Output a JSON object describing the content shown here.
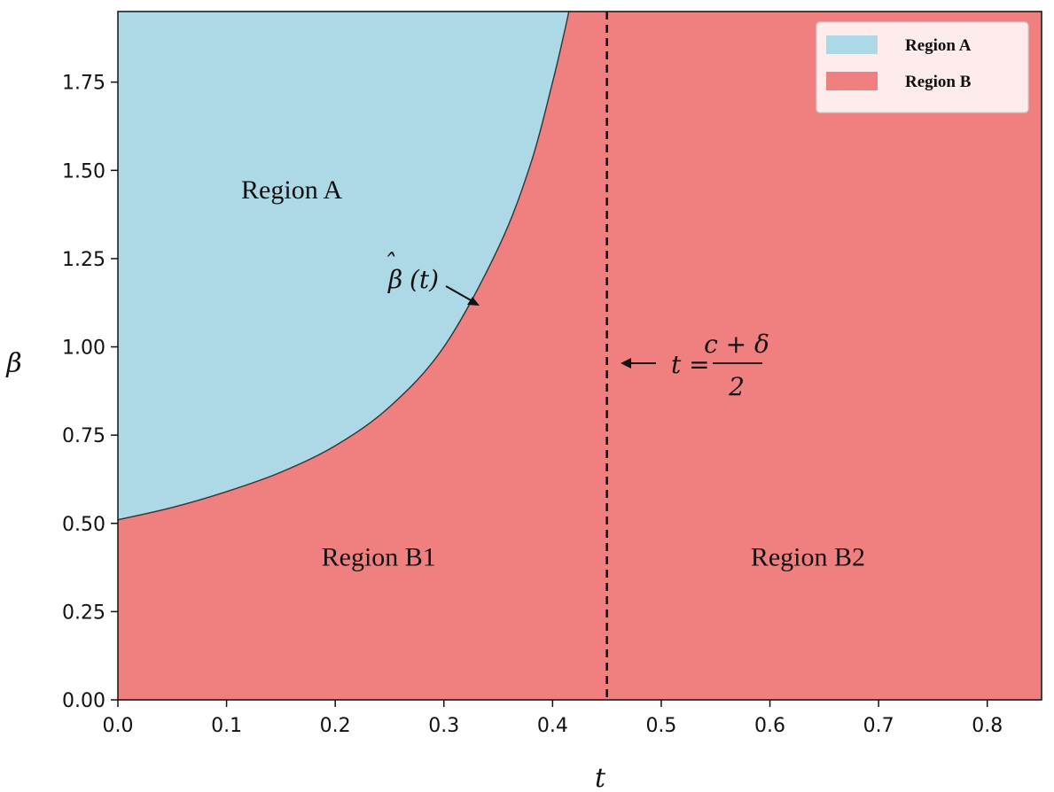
{
  "chart_data": {
    "type": "area",
    "xlabel": "t",
    "ylabel": "β",
    "xlim": [
      0.0,
      0.85
    ],
    "ylim": [
      0.0,
      1.95
    ],
    "x_ticks": [
      "0.0",
      "0.1",
      "0.2",
      "0.3",
      "0.4",
      "0.5",
      "0.6",
      "0.7",
      "0.8"
    ],
    "y_ticks": [
      "0.00",
      "0.25",
      "0.50",
      "0.75",
      "1.00",
      "1.25",
      "1.50",
      "1.75"
    ],
    "grid": false,
    "legend": {
      "placement": "top-right",
      "entries": [
        {
          "label": "Region A",
          "color": "#add8e6"
        },
        {
          "label": "Region B",
          "color": "#f08080"
        }
      ]
    },
    "boundary_curve": {
      "name": "β̂(t)",
      "label_main": "β",
      "label_hat": "ˆ",
      "label_arg": "(t)",
      "x": [
        0.0,
        0.05,
        0.1,
        0.15,
        0.2,
        0.25,
        0.3,
        0.35,
        0.38,
        0.4,
        0.41,
        0.415
      ],
      "y": [
        0.51,
        0.545,
        0.59,
        0.645,
        0.72,
        0.83,
        1.0,
        1.28,
        1.52,
        1.75,
        1.88,
        1.95
      ]
    },
    "vertical_line": {
      "x": 0.45,
      "style": "dashed",
      "label_lhs": "t =",
      "label_numerator": "c + δ",
      "label_denominator": "2"
    },
    "annotations": [
      {
        "text": "Region A",
        "x": 0.16,
        "y": 1.42
      },
      {
        "text": "Region B1",
        "x": 0.24,
        "y": 0.38
      },
      {
        "text": "Region B2",
        "x": 0.635,
        "y": 0.38
      }
    ],
    "colors": {
      "region_a": "#add8e6",
      "region_b": "#f08080",
      "curve": "#333333",
      "vline": "#111111"
    }
  }
}
